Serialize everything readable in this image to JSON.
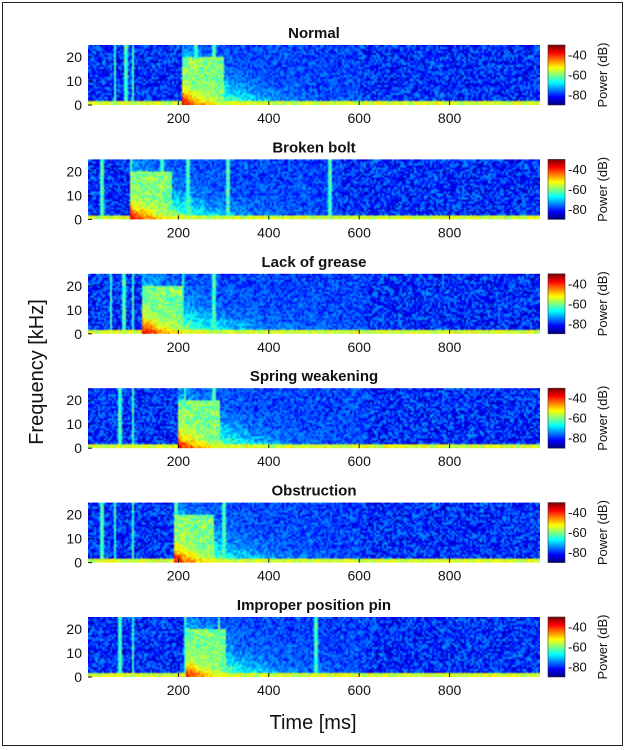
{
  "chart_data": {
    "type": "heatmap",
    "xlabel": "Time [ms]",
    "ylabel": "Frequency [kHz]",
    "x_ticks": [
      200,
      400,
      600,
      800
    ],
    "y_ticks": [
      0,
      10,
      20
    ],
    "xlim": [
      0,
      1000
    ],
    "ylim": [
      0,
      25
    ],
    "colorbar": {
      "label": "Power (dB)",
      "ticks": [
        -40,
        -60,
        -80
      ],
      "range": [
        -90,
        -30
      ],
      "colormap": "jet"
    },
    "panels": [
      {
        "title": "Normal",
        "event_start_ms": 210,
        "event_end_ms": 600,
        "vertical_lines_ms": [
          60,
          85,
          100,
          240,
          280
        ]
      },
      {
        "title": "Broken bolt",
        "event_start_ms": 95,
        "event_end_ms": 560,
        "vertical_lines_ms": [
          30,
          95,
          165,
          220,
          310,
          535
        ]
      },
      {
        "title": "Lack of grease",
        "event_start_ms": 120,
        "event_end_ms": 620,
        "vertical_lines_ms": [
          50,
          80,
          100,
          210,
          280
        ]
      },
      {
        "title": "Spring weakening",
        "event_start_ms": 200,
        "event_end_ms": 620,
        "vertical_lines_ms": [
          70,
          100,
          215,
          280
        ]
      },
      {
        "title": "Obstruction",
        "event_start_ms": 190,
        "event_end_ms": 600,
        "vertical_lines_ms": [
          30,
          60,
          100,
          195,
          300
        ]
      },
      {
        "title": "Improper position pin",
        "event_start_ms": 215,
        "event_end_ms": 620,
        "vertical_lines_ms": [
          70,
          100,
          215,
          290,
          505
        ]
      }
    ]
  }
}
